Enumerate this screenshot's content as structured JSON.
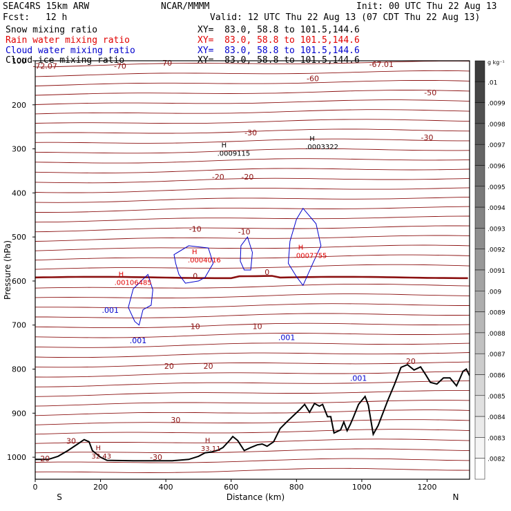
{
  "header": {
    "model": "SEAC4RS 15km ARW",
    "org": "NCAR/MMMM",
    "init": "Init: 00 UTC Thu 22 Aug 13",
    "fcst_label": "Fcst:",
    "fcst_value": "12 h",
    "valid": "Valid: 12 UTC Thu 22 Aug 13 (07 CDT Thu 22 Aug 13)"
  },
  "legend": [
    {
      "name": "Snow mixing ratio",
      "xy": "XY=  83.0, 58.8 to 101.5,144.6",
      "color": "#000000"
    },
    {
      "name": "Rain water mixing ratio",
      "xy": "XY=  83.0, 58.8 to 101.5,144.6",
      "color": "#e00000"
    },
    {
      "name": "Cloud water mixing ratio",
      "xy": "XY=  83.0, 58.8 to 101.5,144.6",
      "color": "#0000cc"
    },
    {
      "name": "Cloud ice mixing ratio",
      "xy": "XY=  83.0, 58.8 to 101.5,144.6",
      "color": "#000000"
    }
  ],
  "colorbar": {
    "unit": "g kg⁻¹",
    "labels": [
      ".01",
      ".0099",
      ".0098",
      ".0097",
      ".0096",
      ".0095",
      ".0094",
      ".0093",
      ".0092",
      ".0091",
      ".009",
      ".0089",
      ".0088",
      ".0087",
      ".0086",
      ".0085",
      ".0084",
      ".0083",
      ".0082"
    ]
  },
  "chart_data": {
    "type": "line",
    "xlabel": "Distance (km)",
    "ylabel": "Pressure (hPa)",
    "xlim": [
      0,
      1330
    ],
    "ylim": [
      1050,
      100
    ],
    "x_ticks": [
      0,
      200,
      400,
      600,
      800,
      1000,
      1200
    ],
    "y_ticks": [
      100,
      200,
      300,
      400,
      500,
      600,
      700,
      800,
      900,
      1000
    ],
    "left_end": "S",
    "right_end": "N",
    "isotherm_color": "#8b1010",
    "isotherms": [
      {
        "label": "-72.07",
        "at": [
          30,
          112
        ]
      },
      {
        "label": "-70",
        "at": [
          260,
          112
        ]
      },
      {
        "label": "-70",
        "at": [
          400,
          105
        ]
      },
      {
        "label": "-67.01",
        "at": [
          1060,
          108
        ]
      },
      {
        "label": "-60",
        "at": [
          850,
          140
        ]
      },
      {
        "label": "-50",
        "at": [
          1210,
          172
        ]
      },
      {
        "label": "-30",
        "at": [
          660,
          263
        ]
      },
      {
        "label": "-30",
        "at": [
          1200,
          274
        ]
      },
      {
        "label": "-20",
        "at": [
          560,
          363
        ]
      },
      {
        "label": "-20",
        "at": [
          650,
          363
        ]
      },
      {
        "label": "-10",
        "at": [
          490,
          482
        ]
      },
      {
        "label": "-10",
        "at": [
          640,
          488
        ]
      },
      {
        "label": "0",
        "at": [
          490,
          588
        ]
      },
      {
        "label": "0",
        "at": [
          710,
          580
        ]
      },
      {
        "label": "10",
        "at": [
          490,
          703
        ]
      },
      {
        "label": "10",
        "at": [
          680,
          703
        ]
      },
      {
        "label": "20",
        "at": [
          410,
          793
        ]
      },
      {
        "label": "20",
        "at": [
          530,
          793
        ]
      },
      {
        "label": "20",
        "at": [
          1150,
          782
        ]
      },
      {
        "label": "30",
        "at": [
          430,
          915
        ]
      },
      {
        "label": "30",
        "at": [
          110,
          963
        ]
      },
      {
        "label": "-30",
        "at": [
          370,
          1000
        ]
      },
      {
        "label": "20",
        "at": [
          30,
          1003
        ]
      }
    ],
    "cloud_water_label": ".001",
    "cloud_water_labels": [
      {
        "text": ".001",
        "at": [
          230,
          666
        ]
      },
      {
        "text": ".001",
        "at": [
          315,
          735
        ]
      },
      {
        "text": ".001",
        "at": [
          770,
          728
        ]
      },
      {
        "text": ".001",
        "at": [
          990,
          820
        ]
      }
    ],
    "maxima": [
      {
        "mark": "H",
        "value": ".0009115",
        "at": [
          570,
          300
        ],
        "color": "#000000"
      },
      {
        "mark": "H",
        "value": ".0003322",
        "at": [
          840,
          285
        ],
        "color": "#000000"
      },
      {
        "mark": "H",
        "value": ".00106485",
        "at": [
          255,
          593
        ],
        "color": "#e00000"
      },
      {
        "mark": "H",
        "value": ".0004016",
        "at": [
          480,
          542
        ],
        "color": "#e00000"
      },
      {
        "mark": "H",
        "value": ".0007755",
        "at": [
          805,
          532
        ],
        "color": "#e00000"
      },
      {
        "mark": "H",
        "value": "33.11",
        "at": [
          520,
          970
        ],
        "color": "#8b1010"
      },
      {
        "mark": "H",
        "value": "32.43",
        "at": [
          185,
          987
        ],
        "color": "#8b1010"
      }
    ],
    "terrain": [
      [
        0,
        1005
      ],
      [
        40,
        1005
      ],
      [
        70,
        998
      ],
      [
        100,
        985
      ],
      [
        130,
        970
      ],
      [
        150,
        960
      ],
      [
        165,
        965
      ],
      [
        175,
        985
      ],
      [
        200,
        1000
      ],
      [
        220,
        1007
      ],
      [
        300,
        1008
      ],
      [
        420,
        1008
      ],
      [
        470,
        1005
      ],
      [
        500,
        998
      ],
      [
        520,
        990
      ],
      [
        540,
        988
      ],
      [
        560,
        984
      ],
      [
        575,
        978
      ],
      [
        595,
        962
      ],
      [
        605,
        953
      ],
      [
        620,
        962
      ],
      [
        640,
        985
      ],
      [
        660,
        978
      ],
      [
        680,
        972
      ],
      [
        695,
        970
      ],
      [
        710,
        975
      ],
      [
        730,
        965
      ],
      [
        750,
        935
      ],
      [
        770,
        920
      ],
      [
        790,
        906
      ],
      [
        810,
        892
      ],
      [
        825,
        880
      ],
      [
        840,
        898
      ],
      [
        855,
        878
      ],
      [
        870,
        884
      ],
      [
        880,
        880
      ],
      [
        895,
        908
      ],
      [
        905,
        908
      ],
      [
        915,
        945
      ],
      [
        935,
        938
      ],
      [
        945,
        920
      ],
      [
        955,
        940
      ],
      [
        965,
        925
      ],
      [
        975,
        908
      ],
      [
        990,
        880
      ],
      [
        1010,
        862
      ],
      [
        1020,
        882
      ],
      [
        1035,
        948
      ],
      [
        1050,
        928
      ],
      [
        1080,
        870
      ],
      [
        1100,
        835
      ],
      [
        1120,
        796
      ],
      [
        1140,
        790
      ],
      [
        1160,
        802
      ],
      [
        1180,
        795
      ],
      [
        1195,
        812
      ],
      [
        1210,
        830
      ],
      [
        1230,
        834
      ],
      [
        1250,
        820
      ],
      [
        1270,
        820
      ],
      [
        1290,
        838
      ],
      [
        1300,
        822
      ],
      [
        1310,
        805
      ],
      [
        1320,
        800
      ],
      [
        1330,
        815
      ]
    ]
  }
}
